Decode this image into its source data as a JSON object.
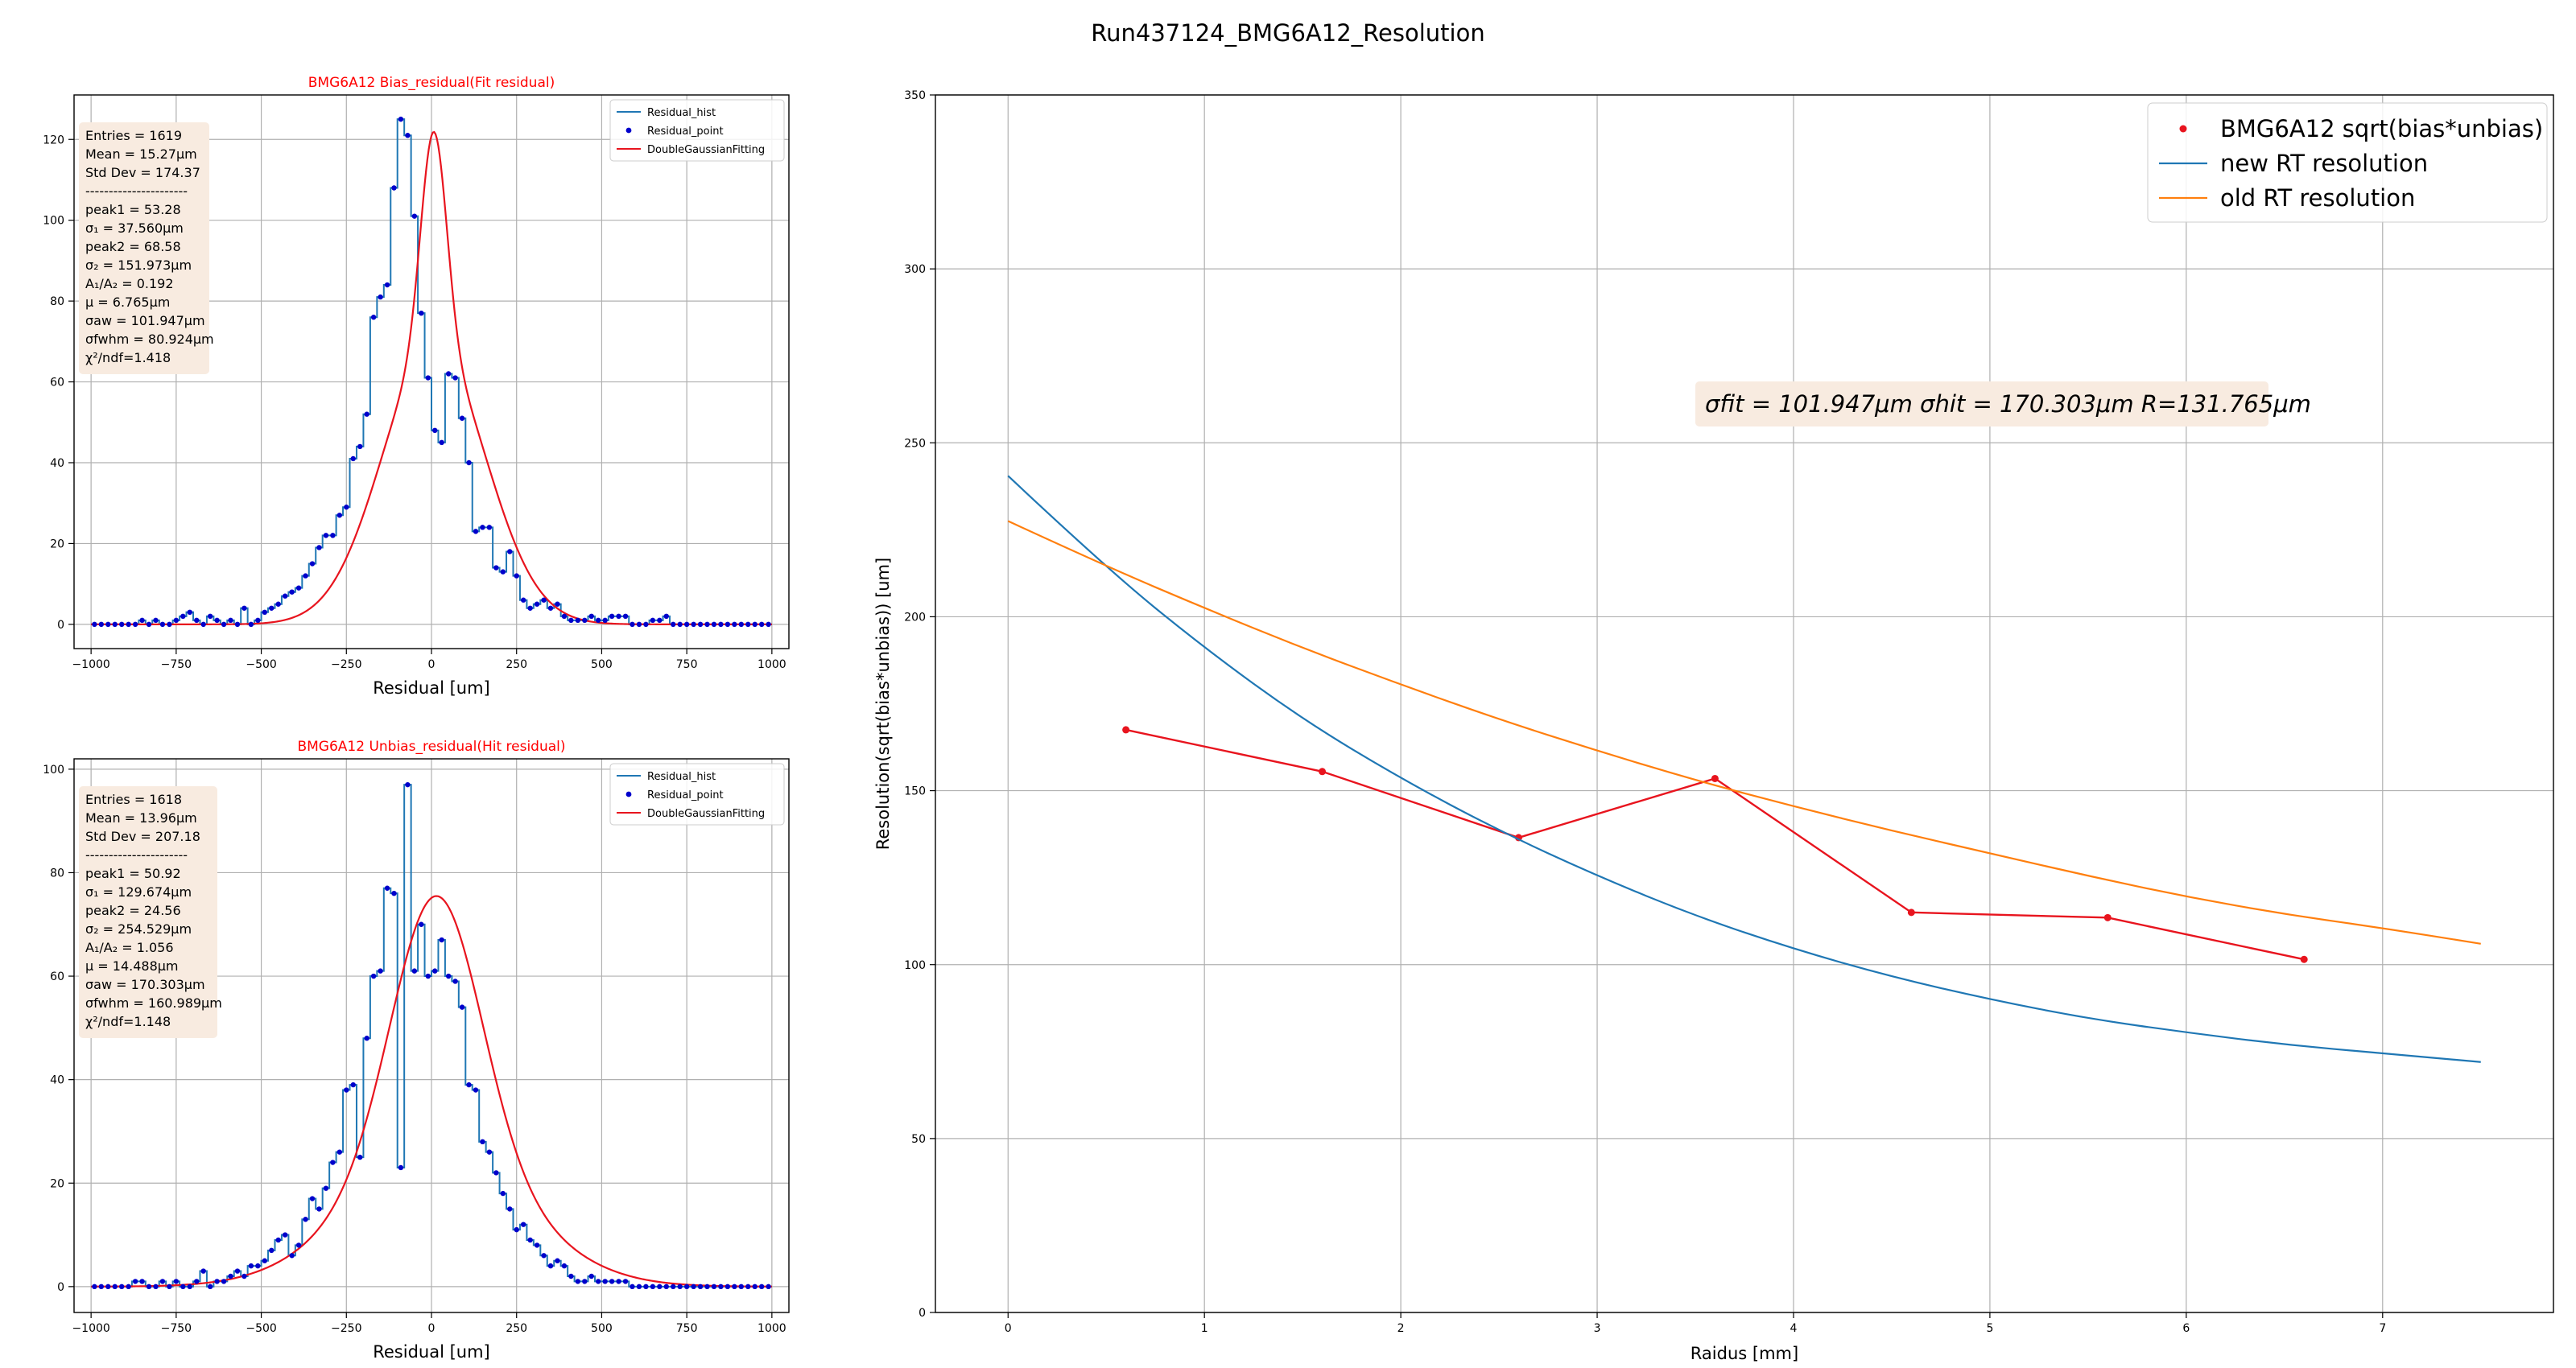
{
  "figure": {
    "suptitle": "Run437124_BMG6A12_Resolution"
  },
  "colors": {
    "hist": "#1f77b4",
    "points": "#0000cc",
    "fit": "#e8141e",
    "new_rt": "#1f77b4",
    "old_rt": "#ff7f0e",
    "bias_marker": "#e8141e",
    "title_red": "#ff0000",
    "stats_box": "#f8ebe0",
    "grid": "#b0b0b0"
  },
  "chart_data": [
    {
      "id": "bias",
      "type": "histogram",
      "title": "BMG6A12 Bias_residual(Fit residual)",
      "xlabel": "Residual [um]",
      "ylabel": "",
      "xlim": [
        -1050,
        1050
      ],
      "ylim": [
        -6,
        131
      ],
      "xticks": [
        -1000,
        -750,
        -500,
        -250,
        0,
        250,
        500,
        750,
        1000
      ],
      "xtick_labels": [
        "−1000",
        "−750",
        "−500",
        "−250",
        "0",
        "250",
        "500",
        "750",
        "1000"
      ],
      "yticks": [
        0,
        20,
        40,
        60,
        80,
        100,
        120
      ],
      "grid": true,
      "legend_position": "top-right",
      "legend": [
        {
          "label": "Residual_hist",
          "kind": "line",
          "color": "#1f77b4"
        },
        {
          "label": "Residual_point",
          "kind": "dot",
          "color": "#0000cc"
        },
        {
          "label": "DoubleGaussianFitting",
          "kind": "line",
          "color": "#e8141e"
        }
      ],
      "stats": {
        "entries": "Entries = 1619",
        "mean": "Mean =  15.27μm",
        "std": "Std Dev = 174.37",
        "separator": "----------------------",
        "peak1": "peak1 = 53.28",
        "sigma1": "σ₁ = 37.560μm",
        "peak2": "peak2 = 68.58",
        "sigma2": "σ₂ = 151.973μm",
        "ratio": "A₁/A₂ = 0.192",
        "mu": "μ = 6.765μm",
        "sigma_aw": "σaw = 101.947μm",
        "sigma_fwhm": "σfwhm = 80.924μm",
        "chi2": "χ²/ndf=1.418"
      },
      "bin_width": 20,
      "hist_x": [
        -990,
        -970,
        -950,
        -930,
        -910,
        -890,
        -870,
        -850,
        -830,
        -810,
        -790,
        -770,
        -750,
        -730,
        -710,
        -690,
        -670,
        -650,
        -630,
        -610,
        -590,
        -570,
        -550,
        -530,
        -510,
        -490,
        -470,
        -450,
        -430,
        -410,
        -390,
        -370,
        -350,
        -330,
        -310,
        -290,
        -270,
        -250,
        -230,
        -210,
        -190,
        -170,
        -150,
        -130,
        -110,
        -90,
        -70,
        -50,
        -30,
        -10,
        10,
        30,
        50,
        70,
        90,
        110,
        130,
        150,
        170,
        190,
        210,
        230,
        250,
        270,
        290,
        310,
        330,
        350,
        370,
        390,
        410,
        430,
        450,
        470,
        490,
        510,
        530,
        550,
        570,
        590,
        610,
        630,
        650,
        670,
        690,
        710,
        730,
        750,
        770,
        790,
        810,
        830,
        850,
        870,
        890,
        910,
        930,
        950,
        970,
        990
      ],
      "hist_y": [
        0,
        0,
        0,
        0,
        0,
        0,
        0,
        1,
        0,
        1,
        0,
        0,
        1,
        2,
        3,
        1,
        0,
        2,
        1,
        0,
        1,
        0,
        4,
        0,
        1,
        3,
        4,
        5,
        7,
        8,
        9,
        12,
        15,
        19,
        22,
        22,
        27,
        29,
        41,
        44,
        52,
        76,
        81,
        84,
        108,
        125,
        121,
        101,
        77,
        61,
        48,
        45,
        62,
        61,
        51,
        40,
        23,
        24,
        24,
        14,
        13,
        18,
        12,
        6,
        4,
        5,
        6,
        4,
        5,
        2,
        1,
        1,
        1,
        2,
        1,
        1,
        2,
        2,
        2,
        0,
        0,
        0,
        1,
        1,
        2,
        0,
        0,
        0,
        0,
        0,
        0,
        0,
        0,
        0,
        0,
        0,
        0,
        0,
        0,
        0
      ],
      "fit_params": {
        "A1": 53.28,
        "s1": 37.56,
        "A2": 68.58,
        "s2": 151.973,
        "mu": 6.765
      }
    },
    {
      "id": "unbias",
      "type": "histogram",
      "title": "BMG6A12 Unbias_residual(Hit residual)",
      "xlabel": "Residual [um]",
      "ylabel": "",
      "xlim": [
        -1050,
        1050
      ],
      "ylim": [
        -5,
        102
      ],
      "xticks": [
        -1000,
        -750,
        -500,
        -250,
        0,
        250,
        500,
        750,
        1000
      ],
      "xtick_labels": [
        "−1000",
        "−750",
        "−500",
        "−250",
        "0",
        "250",
        "500",
        "750",
        "1000"
      ],
      "yticks": [
        0,
        20,
        40,
        60,
        80,
        100
      ],
      "grid": true,
      "legend_position": "top-right",
      "legend": [
        {
          "label": "Residual_hist",
          "kind": "line",
          "color": "#1f77b4"
        },
        {
          "label": "Residual_point",
          "kind": "dot",
          "color": "#0000cc"
        },
        {
          "label": "DoubleGaussianFitting",
          "kind": "line",
          "color": "#e8141e"
        }
      ],
      "stats": {
        "entries": "Entries = 1618",
        "mean": "Mean =  13.96μm",
        "std": "Std Dev = 207.18",
        "separator": "----------------------",
        "peak1": "peak1 = 50.92",
        "sigma1": "σ₁ = 129.674μm",
        "peak2": "peak2 = 24.56",
        "sigma2": "σ₂ = 254.529μm",
        "ratio": "A₁/A₂ = 1.056",
        "mu": "μ = 14.488μm",
        "sigma_aw": "σaw = 170.303μm",
        "sigma_fwhm": "σfwhm = 160.989μm",
        "chi2": "χ²/ndf=1.148"
      },
      "bin_width": 20,
      "hist_x": [
        -990,
        -970,
        -950,
        -930,
        -910,
        -890,
        -870,
        -850,
        -830,
        -810,
        -790,
        -770,
        -750,
        -730,
        -710,
        -690,
        -670,
        -650,
        -630,
        -610,
        -590,
        -570,
        -550,
        -530,
        -510,
        -490,
        -470,
        -450,
        -430,
        -410,
        -390,
        -370,
        -350,
        -330,
        -310,
        -290,
        -270,
        -250,
        -230,
        -210,
        -190,
        -170,
        -150,
        -130,
        -110,
        -90,
        -70,
        -50,
        -30,
        -10,
        10,
        30,
        50,
        70,
        90,
        110,
        130,
        150,
        170,
        190,
        210,
        230,
        250,
        270,
        290,
        310,
        330,
        350,
        370,
        390,
        410,
        430,
        450,
        470,
        490,
        510,
        530,
        550,
        570,
        590,
        610,
        630,
        650,
        670,
        690,
        710,
        730,
        750,
        770,
        790,
        810,
        830,
        850,
        870,
        890,
        910,
        930,
        950,
        970,
        990
      ],
      "hist_y": [
        0,
        0,
        0,
        0,
        0,
        0,
        1,
        1,
        0,
        0,
        1,
        0,
        1,
        0,
        0,
        1,
        3,
        0,
        1,
        1,
        2,
        3,
        2,
        4,
        4,
        5,
        7,
        9,
        10,
        6,
        8,
        13,
        17,
        15,
        19,
        24,
        26,
        38,
        39,
        25,
        48,
        60,
        61,
        77,
        76,
        23,
        97,
        61,
        70,
        60,
        61,
        67,
        60,
        59,
        54,
        39,
        38,
        28,
        26,
        22,
        18,
        15,
        11,
        12,
        9,
        8,
        6,
        4,
        5,
        4,
        2,
        1,
        1,
        2,
        1,
        1,
        1,
        1,
        1,
        0,
        0,
        0,
        0,
        0,
        0,
        0,
        0,
        0,
        0,
        0,
        0,
        0,
        0,
        0,
        0,
        0,
        0,
        0,
        0,
        0
      ],
      "fit_params": {
        "A1": 50.92,
        "s1": 129.674,
        "A2": 24.56,
        "s2": 254.529,
        "mu": 14.488
      }
    },
    {
      "id": "resolution",
      "type": "line",
      "title": "",
      "xlabel": "Raidus [mm]",
      "ylabel": "Resolution(sqrt(bias*unbias)) [um]",
      "xlim": [
        -0.37,
        7.87
      ],
      "ylim": [
        0,
        350
      ],
      "xticks": [
        0,
        1,
        2,
        3,
        4,
        5,
        6,
        7
      ],
      "xtick_labels": [
        "0",
        "1",
        "2",
        "3",
        "4",
        "5",
        "6",
        "7"
      ],
      "yticks": [
        0,
        50,
        100,
        150,
        200,
        250,
        300,
        350
      ],
      "grid": true,
      "legend_position": "top-right",
      "annotation": "σfit = 101.947μm  σhit = 170.303μm  R=131.765μm",
      "series": [
        {
          "name": "BMG6A12 sqrt(bias*unbias)",
          "kind": "line_markers",
          "color": "#e8141e",
          "x": [
            0.6,
            1.6,
            2.6,
            3.6,
            4.6,
            5.6,
            6.6
          ],
          "y": [
            167.5,
            155.5,
            136.5,
            153.5,
            115,
            113.5,
            101.5
          ]
        },
        {
          "name": "new RT resolution",
          "kind": "line",
          "color": "#1f77b4",
          "x": [
            0,
            0.5,
            1,
            1.5,
            2,
            2.5,
            3,
            3.5,
            4,
            4.5,
            5,
            5.5,
            6,
            6.5,
            7,
            7.5
          ],
          "y": [
            240.5,
            214,
            191,
            170.5,
            153.5,
            138.5,
            125.5,
            114,
            104.5,
            96.5,
            90,
            84.5,
            80.5,
            77,
            74.5,
            72
          ]
        },
        {
          "name": "old RT resolution",
          "kind": "line",
          "color": "#ff7f0e",
          "x": [
            0,
            0.5,
            1,
            1.5,
            2,
            2.5,
            3,
            3.5,
            4,
            4.5,
            5,
            5.5,
            6,
            6.5,
            7,
            7.5
          ],
          "y": [
            227.5,
            214.5,
            202.5,
            191,
            180.5,
            170.5,
            161.5,
            153,
            145.5,
            138.5,
            132,
            125.5,
            119.5,
            114.5,
            110.5,
            106
          ]
        }
      ]
    }
  ]
}
